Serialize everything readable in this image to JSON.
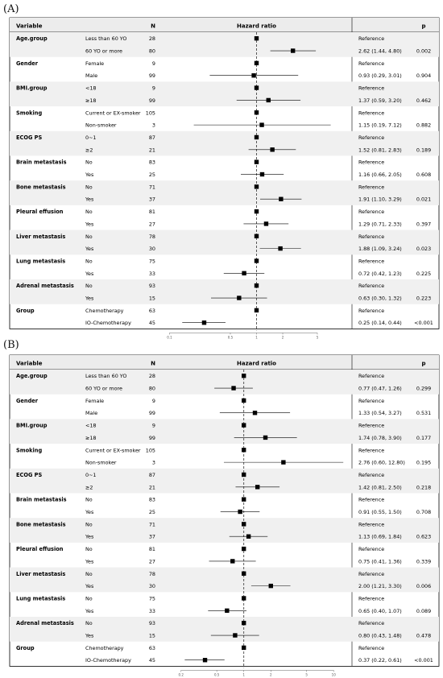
{
  "chart_data": [
    {
      "panel_label": "(A)",
      "type": "forest",
      "headers": {
        "variable": "Variable",
        "n": "N",
        "hr": "Hazard ratio",
        "p": "p"
      },
      "scale": "log",
      "xlim": [
        0.08,
        12.5
      ],
      "ticks": [
        {
          "value": 0.1,
          "label": "0.1"
        },
        {
          "value": 0.5,
          "label": "0.5"
        },
        {
          "value": 1,
          "label": "1"
        },
        {
          "value": 2,
          "label": "2"
        },
        {
          "value": 5,
          "label": "5"
        }
      ],
      "reference_line": 1,
      "rows": [
        {
          "variable": "Age.group",
          "level": "Less than 60 YO",
          "n": "28",
          "hr": null,
          "lo": null,
          "hi": null,
          "text": "Reference",
          "p": ""
        },
        {
          "variable": "",
          "level": "60 YO or more",
          "n": "80",
          "hr": 2.62,
          "lo": 1.44,
          "hi": 4.8,
          "text": "2.62 (1.44, 4.80)",
          "p": "0.002"
        },
        {
          "variable": "Gender",
          "level": "Female",
          "n": "9",
          "hr": null,
          "lo": null,
          "hi": null,
          "text": "Reference",
          "p": ""
        },
        {
          "variable": "",
          "level": "Male",
          "n": "99",
          "hr": 0.93,
          "lo": 0.29,
          "hi": 3.01,
          "text": "0.93 (0.29, 3.01)",
          "p": "0.904"
        },
        {
          "variable": "BMI.group",
          "level": "<18",
          "n": "9",
          "hr": null,
          "lo": null,
          "hi": null,
          "text": "Reference",
          "p": ""
        },
        {
          "variable": "",
          "level": "≥18",
          "n": "99",
          "hr": 1.37,
          "lo": 0.59,
          "hi": 3.2,
          "text": "1.37 (0.59, 3.20)",
          "p": "0.462"
        },
        {
          "variable": "Smoking",
          "level": "Current or EX-smoker",
          "n": "105",
          "hr": null,
          "lo": null,
          "hi": null,
          "text": "Reference",
          "p": ""
        },
        {
          "variable": "",
          "level": "Non-smoker",
          "n": "3",
          "hr": 1.15,
          "lo": 0.19,
          "hi": 7.12,
          "text": "1.15 (0.19, 7.12)",
          "p": "0.882"
        },
        {
          "variable": "ECOG PS",
          "level": "0~1",
          "n": "87",
          "hr": null,
          "lo": null,
          "hi": null,
          "text": "Reference",
          "p": ""
        },
        {
          "variable": "",
          "level": "≥2",
          "n": "21",
          "hr": 1.52,
          "lo": 0.81,
          "hi": 2.83,
          "text": "1.52 (0.81, 2.83)",
          "p": "0.189"
        },
        {
          "variable": "Brain metastasis",
          "level": "No",
          "n": "83",
          "hr": null,
          "lo": null,
          "hi": null,
          "text": "Reference",
          "p": ""
        },
        {
          "variable": "",
          "level": "Yes",
          "n": "25",
          "hr": 1.16,
          "lo": 0.66,
          "hi": 2.05,
          "text": "1.16 (0.66, 2.05)",
          "p": "0.608"
        },
        {
          "variable": "Bone metastasis",
          "level": "No",
          "n": "71",
          "hr": null,
          "lo": null,
          "hi": null,
          "text": "Reference",
          "p": ""
        },
        {
          "variable": "",
          "level": "Yes",
          "n": "37",
          "hr": 1.91,
          "lo": 1.1,
          "hi": 3.29,
          "text": "1.91 (1.10, 3.29)",
          "p": "0.021"
        },
        {
          "variable": "Pleural effusion",
          "level": "No",
          "n": "81",
          "hr": null,
          "lo": null,
          "hi": null,
          "text": "Reference",
          "p": ""
        },
        {
          "variable": "",
          "level": "Yes",
          "n": "27",
          "hr": 1.29,
          "lo": 0.71,
          "hi": 2.33,
          "text": "1.29 (0.71, 2.33)",
          "p": "0.397"
        },
        {
          "variable": "Liver metastasis",
          "level": "No",
          "n": "78",
          "hr": null,
          "lo": null,
          "hi": null,
          "text": "Reference",
          "p": ""
        },
        {
          "variable": "",
          "level": "Yes",
          "n": "30",
          "hr": 1.88,
          "lo": 1.09,
          "hi": 3.24,
          "text": "1.88 (1.09, 3.24)",
          "p": "0.023"
        },
        {
          "variable": "Lung metastasis",
          "level": "No",
          "n": "75",
          "hr": null,
          "lo": null,
          "hi": null,
          "text": "Reference",
          "p": ""
        },
        {
          "variable": "",
          "level": "Yes",
          "n": "33",
          "hr": 0.72,
          "lo": 0.42,
          "hi": 1.23,
          "text": "0.72 (0.42, 1.23)",
          "p": "0.225"
        },
        {
          "variable": "Adrenal metastasis",
          "level": "No",
          "n": "93",
          "hr": null,
          "lo": null,
          "hi": null,
          "text": "Reference",
          "p": ""
        },
        {
          "variable": "",
          "level": "Yes",
          "n": "15",
          "hr": 0.63,
          "lo": 0.3,
          "hi": 1.32,
          "text": "0.63 (0.30, 1.32)",
          "p": "0.223"
        },
        {
          "variable": "Group",
          "level": "Chemotherapy",
          "n": "63",
          "hr": null,
          "lo": null,
          "hi": null,
          "text": "Reference",
          "p": ""
        },
        {
          "variable": "",
          "level": "IO-Chemotherapy",
          "n": "45",
          "hr": 0.25,
          "lo": 0.14,
          "hi": 0.44,
          "text": "0.25 (0.14, 0.44)",
          "p": "<0.001"
        }
      ]
    },
    {
      "panel_label": "(B)",
      "type": "forest",
      "headers": {
        "variable": "Variable",
        "n": "N",
        "hr": "Hazard ratio",
        "p": "p"
      },
      "scale": "log",
      "xlim": [
        0.12,
        16
      ],
      "ticks": [
        {
          "value": 0.2,
          "label": "0.2"
        },
        {
          "value": 0.5,
          "label": "0.5"
        },
        {
          "value": 1,
          "label": "1"
        },
        {
          "value": 2,
          "label": "2"
        },
        {
          "value": 5,
          "label": "5"
        },
        {
          "value": 10,
          "label": "10"
        }
      ],
      "reference_line": 1,
      "rows": [
        {
          "variable": "Age.group",
          "level": "Less than 60 YO",
          "n": "28",
          "hr": null,
          "lo": null,
          "hi": null,
          "text": "Reference",
          "p": ""
        },
        {
          "variable": "",
          "level": "60 YO or more",
          "n": "80",
          "hr": 0.77,
          "lo": 0.47,
          "hi": 1.26,
          "text": "0.77 (0.47, 1.26)",
          "p": "0.299"
        },
        {
          "variable": "Gender",
          "level": "Female",
          "n": "9",
          "hr": null,
          "lo": null,
          "hi": null,
          "text": "Reference",
          "p": ""
        },
        {
          "variable": "",
          "level": "Male",
          "n": "99",
          "hr": 1.33,
          "lo": 0.54,
          "hi": 3.27,
          "text": "1.33 (0.54, 3.27)",
          "p": "0.531"
        },
        {
          "variable": "BMI.group",
          "level": "<18",
          "n": "9",
          "hr": null,
          "lo": null,
          "hi": null,
          "text": "Reference",
          "p": ""
        },
        {
          "variable": "",
          "level": "≥18",
          "n": "99",
          "hr": 1.74,
          "lo": 0.78,
          "hi": 3.9,
          "text": "1.74 (0.78, 3.90)",
          "p": "0.177"
        },
        {
          "variable": "Smoking",
          "level": "Current or EX-smoker",
          "n": "105",
          "hr": null,
          "lo": null,
          "hi": null,
          "text": "Reference",
          "p": ""
        },
        {
          "variable": "",
          "level": "Non-smoker",
          "n": "3",
          "hr": 2.76,
          "lo": 0.6,
          "hi": 12.8,
          "text": "2.76 (0.60, 12.80)",
          "p": "0.195"
        },
        {
          "variable": "ECOG PS",
          "level": "0~1",
          "n": "87",
          "hr": null,
          "lo": null,
          "hi": null,
          "text": "Reference",
          "p": ""
        },
        {
          "variable": "",
          "level": "≥2",
          "n": "21",
          "hr": 1.42,
          "lo": 0.81,
          "hi": 2.5,
          "text": "1.42 (0.81, 2.50)",
          "p": "0.218"
        },
        {
          "variable": "Brain metastasis",
          "level": "No",
          "n": "83",
          "hr": null,
          "lo": null,
          "hi": null,
          "text": "Reference",
          "p": ""
        },
        {
          "variable": "",
          "level": "Yes",
          "n": "25",
          "hr": 0.91,
          "lo": 0.55,
          "hi": 1.5,
          "text": "0.91 (0.55, 1.50)",
          "p": "0.708"
        },
        {
          "variable": "Bone metastasis",
          "level": "No",
          "n": "71",
          "hr": null,
          "lo": null,
          "hi": null,
          "text": "Reference",
          "p": ""
        },
        {
          "variable": "",
          "level": "Yes",
          "n": "37",
          "hr": 1.13,
          "lo": 0.69,
          "hi": 1.84,
          "text": "1.13 (0.69, 1.84)",
          "p": "0.623"
        },
        {
          "variable": "Pleural effusion",
          "level": "No",
          "n": "81",
          "hr": null,
          "lo": null,
          "hi": null,
          "text": "Reference",
          "p": ""
        },
        {
          "variable": "",
          "level": "Yes",
          "n": "27",
          "hr": 0.75,
          "lo": 0.41,
          "hi": 1.36,
          "text": "0.75 (0.41, 1.36)",
          "p": "0.339"
        },
        {
          "variable": "Liver metastasis",
          "level": "No",
          "n": "78",
          "hr": null,
          "lo": null,
          "hi": null,
          "text": "Reference",
          "p": ""
        },
        {
          "variable": "",
          "level": "Yes",
          "n": "30",
          "hr": 2.0,
          "lo": 1.21,
          "hi": 3.3,
          "text": "2.00 (1.21, 3.30)",
          "p": "0.006"
        },
        {
          "variable": "Lung metastasis",
          "level": "No",
          "n": "75",
          "hr": null,
          "lo": null,
          "hi": null,
          "text": "Reference",
          "p": ""
        },
        {
          "variable": "",
          "level": "Yes",
          "n": "33",
          "hr": 0.65,
          "lo": 0.4,
          "hi": 1.07,
          "text": "0.65 (0.40, 1.07)",
          "p": "0.089"
        },
        {
          "variable": "Adrenal metastasis",
          "level": "No",
          "n": "93",
          "hr": null,
          "lo": null,
          "hi": null,
          "text": "Reference",
          "p": ""
        },
        {
          "variable": "",
          "level": "Yes",
          "n": "15",
          "hr": 0.8,
          "lo": 0.43,
          "hi": 1.48,
          "text": "0.80 (0.43, 1.48)",
          "p": "0.478"
        },
        {
          "variable": "Group",
          "level": "Chemotherapy",
          "n": "63",
          "hr": null,
          "lo": null,
          "hi": null,
          "text": "Reference",
          "p": ""
        },
        {
          "variable": "",
          "level": "IO-Chemotherapy",
          "n": "45",
          "hr": 0.37,
          "lo": 0.22,
          "hi": 0.61,
          "text": "0.37 (0.22, 0.61)",
          "p": "<0.001"
        }
      ]
    }
  ]
}
